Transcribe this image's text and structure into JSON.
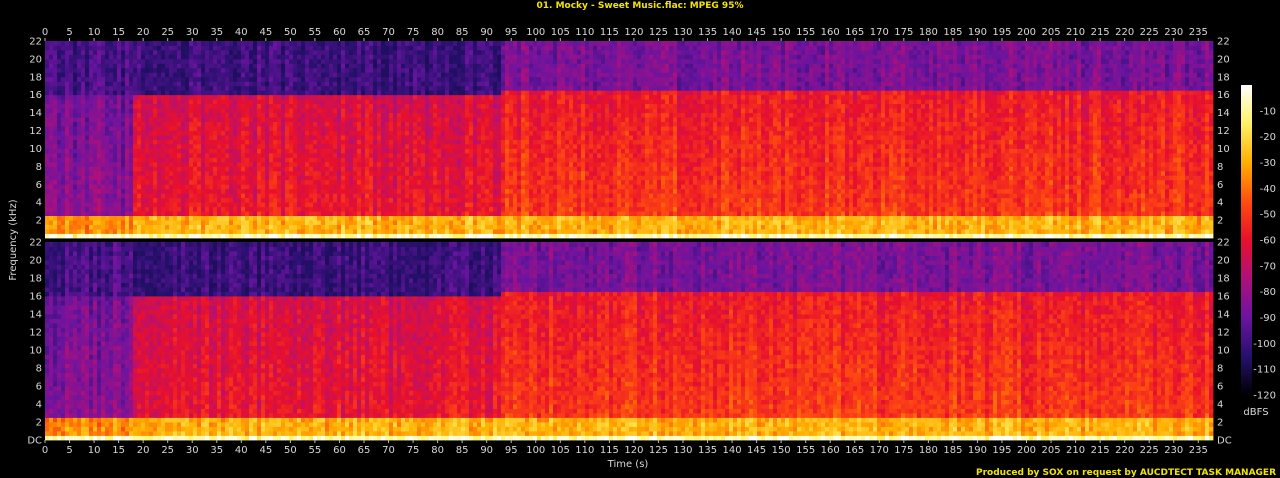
{
  "chart_data": {
    "type": "heatmap",
    "title": "01. Mocky - Sweet Music.flac: MPEG 95%",
    "xlabel": "Time (s)",
    "ylabel": "Frequency (kHz)",
    "x_ticks": [
      0,
      5,
      10,
      15,
      20,
      25,
      30,
      35,
      40,
      45,
      50,
      55,
      60,
      65,
      70,
      75,
      80,
      85,
      90,
      95,
      100,
      105,
      110,
      115,
      120,
      125,
      130,
      135,
      140,
      145,
      150,
      155,
      160,
      165,
      170,
      175,
      180,
      185,
      190,
      195,
      200,
      205,
      210,
      215,
      220,
      225,
      230,
      235
    ],
    "xlim": [
      0,
      238
    ],
    "y_ticks": [
      "DC",
      "2",
      "4",
      "6",
      "8",
      "10",
      "12",
      "14",
      "16",
      "18",
      "20",
      "22"
    ],
    "ylim": [
      0,
      22
    ],
    "channels": 2,
    "colorbar": {
      "label": "dBFS",
      "ticks": [
        -10,
        -20,
        -30,
        -40,
        -50,
        -60,
        -70,
        -80,
        -90,
        -100,
        -110,
        -120
      ],
      "range": [
        0,
        -120
      ]
    },
    "lowpass_cutoff_khz_by_segment": [
      {
        "t_start": 0,
        "t_end": 18,
        "cutoff_khz": 16
      },
      {
        "t_start": 18,
        "t_end": 93,
        "cutoff_khz": 16
      },
      {
        "t_start": 93,
        "t_end": 238,
        "cutoff_khz": 16.5
      }
    ]
  },
  "footer": {
    "credit": "Produced by SOX on request by AUCDTECT TASK MANAGER"
  }
}
